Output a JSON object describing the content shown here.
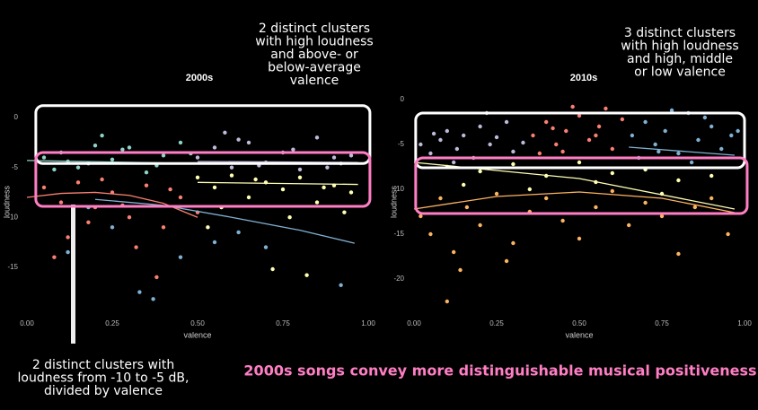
{
  "headline": "2000s songs convey more distinguishable musical positiveness",
  "chart_data": [
    {
      "type": "scatter",
      "title": "2000s",
      "x_label": "valence",
      "y_label": "loudness",
      "xlim": [
        0,
        1
      ],
      "ylim": [
        -19.7,
        2.8
      ],
      "xticks": [
        {
          "value": 0,
          "label": "0.00"
        },
        {
          "value": 0.25,
          "label": "0.25"
        },
        {
          "value": 0.5,
          "label": "0.50"
        },
        {
          "value": 0.75,
          "label": "0.75"
        },
        {
          "value": 1,
          "label": "1.00"
        }
      ],
      "yticks": [
        0,
        -5,
        -10,
        -15
      ],
      "series": [
        {
          "color": "#8dd3c7",
          "x": [
            0.05,
            0.1,
            0.15,
            0.2,
            0.25,
            0.3,
            0.35,
            0.4,
            0.45,
            0.08,
            0.18,
            0.28,
            0.38,
            0.48,
            0.22,
            0.12
          ],
          "values": [
            -4,
            -3.5,
            -5,
            -2.8,
            -4.2,
            -3,
            -5.5,
            -3.8,
            -2.5,
            -5.2,
            -4.6,
            -3.2,
            -4.8,
            -3.6,
            -1.8,
            -4.4
          ]
        },
        {
          "color": "#fb8072",
          "x": [
            0.05,
            0.1,
            0.15,
            0.2,
            0.25,
            0.3,
            0.35,
            0.4,
            0.45,
            0.5,
            0.12,
            0.22,
            0.32,
            0.42,
            0.18,
            0.28,
            0.08,
            0.38
          ],
          "values": [
            -7,
            -8.5,
            -6.5,
            -9,
            -7.5,
            -10,
            -6.8,
            -11,
            -8,
            -9.5,
            -12,
            -6.2,
            -13,
            -7.2,
            -10.5,
            -8.8,
            -14,
            -16
          ]
        },
        {
          "color": "#bebada",
          "x": [
            0.5,
            0.55,
            0.6,
            0.65,
            0.7,
            0.75,
            0.8,
            0.85,
            0.9,
            0.95,
            0.58,
            0.68,
            0.78,
            0.88,
            0.62,
            0.92
          ],
          "values": [
            -4,
            -3,
            -5,
            -2.5,
            -4.5,
            -3.5,
            -5.2,
            -2,
            -4,
            -3.8,
            -1.5,
            -4.8,
            -3.2,
            -5,
            -2.2,
            -4.6
          ]
        },
        {
          "color": "#ffffb3",
          "x": [
            0.5,
            0.55,
            0.6,
            0.65,
            0.7,
            0.75,
            0.8,
            0.85,
            0.9,
            0.95,
            0.57,
            0.67,
            0.77,
            0.87,
            0.53,
            0.72,
            0.82,
            0.93
          ],
          "values": [
            -6,
            -7,
            -5.8,
            -8,
            -6.5,
            -7.2,
            -6,
            -8.5,
            -6.8,
            -7.5,
            -9,
            -6.2,
            -10,
            -7,
            -11,
            -15.2,
            -15.8,
            -9.5
          ]
        },
        {
          "color": "#80b1d3",
          "x": [
            0.12,
            0.18,
            0.25,
            0.33,
            0.37,
            0.45,
            0.55,
            0.62,
            0.7,
            0.92
          ],
          "values": [
            -13.5,
            -9,
            -11,
            -17.5,
            -18.2,
            -14,
            -12.5,
            -11.5,
            -13,
            -16.8
          ]
        }
      ],
      "trend_lines": [
        {
          "color": "#8dd3c7",
          "x": [
            0,
            0.5
          ],
          "values": [
            -4.3,
            -4.6
          ]
        },
        {
          "color": "#fb8072",
          "x": [
            0,
            0.1,
            0.2,
            0.3,
            0.4,
            0.5
          ],
          "values": [
            -8,
            -7.6,
            -7.5,
            -7.8,
            -8.6,
            -10
          ]
        },
        {
          "color": "#80b1d3",
          "x": [
            0.2,
            0.4,
            0.6,
            0.8,
            0.96
          ],
          "values": [
            -8.2,
            -8.8,
            -10,
            -11.3,
            -12.6
          ]
        },
        {
          "color": "#ffffb3",
          "x": [
            0.5,
            0.97
          ],
          "values": [
            -6.5,
            -6.7
          ]
        },
        {
          "color": "#bebada",
          "x": [
            0.5,
            0.97
          ],
          "values": [
            -4.4,
            -4.5
          ]
        }
      ],
      "highlight_boxes": [
        {
          "color": "#ffffff",
          "xlim": [
            0.026,
            1.005
          ],
          "ylim": [
            -4.6,
            1.2
          ]
        },
        {
          "color": "#ff7ec4",
          "xlim": [
            0.026,
            1.005
          ],
          "ylim": [
            -8.9,
            -3.5
          ]
        }
      ],
      "annotation_top": [
        "2 distinct clusters",
        "with high loudness",
        "and above- or",
        "below-average",
        "valence"
      ],
      "annotation_bottom": [
        "2 distinct clusters with",
        "loudness from -10 to -5 dB,",
        "divided by valence"
      ]
    },
    {
      "type": "scatter",
      "title": "2010s",
      "x_label": "valence",
      "y_label": "loudness",
      "xlim": [
        0,
        1
      ],
      "ylim": [
        -23.9,
        1.1
      ],
      "xticks": [
        {
          "value": 0,
          "label": "0.00"
        },
        {
          "value": 0.25,
          "label": "0.25"
        },
        {
          "value": 0.5,
          "label": "0.50"
        },
        {
          "value": 0.75,
          "label": "0.75"
        },
        {
          "value": 1,
          "label": "1.00"
        }
      ],
      "yticks": [
        0,
        -5,
        -10,
        -15,
        -20
      ],
      "series": [
        {
          "color": "#bebada",
          "x": [
            0.02,
            0.05,
            0.08,
            0.1,
            0.13,
            0.15,
            0.18,
            0.2,
            0.23,
            0.25,
            0.28,
            0.3,
            0.33,
            0.12,
            0.22,
            0.06
          ],
          "values": [
            -5,
            -6,
            -4.5,
            -3.5,
            -5.5,
            -4,
            -6.5,
            -3,
            -5,
            -4.2,
            -2.5,
            -5.8,
            -4.8,
            -7,
            -1.5,
            -3.8
          ]
        },
        {
          "color": "#fb8072",
          "x": [
            0.36,
            0.4,
            0.43,
            0.46,
            0.5,
            0.53,
            0.56,
            0.6,
            0.63,
            0.38,
            0.48,
            0.58,
            0.45,
            0.55,
            0.42
          ],
          "values": [
            -4,
            -2.5,
            -5,
            -3.5,
            -1.8,
            -4.5,
            -3,
            -5.5,
            -2.2,
            -6,
            -0.8,
            -1,
            -5.8,
            -4,
            -3.2
          ]
        },
        {
          "color": "#80b1d3",
          "x": [
            0.66,
            0.7,
            0.73,
            0.76,
            0.8,
            0.83,
            0.86,
            0.9,
            0.93,
            0.96,
            0.68,
            0.78,
            0.88,
            0.74,
            0.84,
            0.98
          ],
          "values": [
            -4,
            -2.5,
            -5,
            -3.5,
            -6,
            -1.5,
            -4.5,
            -3,
            -5.5,
            -4,
            -6.5,
            -1.2,
            -2,
            -5.8,
            -7,
            -3.5
          ]
        },
        {
          "color": "#ffffb3",
          "x": [
            0.1,
            0.2,
            0.3,
            0.4,
            0.5,
            0.6,
            0.7,
            0.8,
            0.9,
            0.15,
            0.35,
            0.55,
            0.75
          ],
          "values": [
            -7.5,
            -8,
            -7.2,
            -8.5,
            -7,
            -8.2,
            -7.8,
            -9,
            -8.5,
            -9.5,
            -10,
            -9.2,
            -10.5
          ]
        },
        {
          "color": "#fdb462",
          "x": [
            0.02,
            0.05,
            0.08,
            0.12,
            0.16,
            0.2,
            0.25,
            0.3,
            0.35,
            0.4,
            0.45,
            0.5,
            0.55,
            0.6,
            0.65,
            0.7,
            0.75,
            0.8,
            0.85,
            0.9,
            0.95,
            0.1,
            0.14,
            0.28
          ],
          "values": [
            -13,
            -15,
            -11,
            -17,
            -12,
            -14,
            -10.5,
            -16,
            -12.5,
            -11,
            -13.5,
            -15.5,
            -12,
            -10.2,
            -14,
            -11.5,
            -13,
            -17.2,
            -12,
            -11,
            -15,
            -22.5,
            -19,
            -18
          ]
        }
      ],
      "trend_lines": [
        {
          "color": "#fdb462",
          "x": [
            0,
            0.25,
            0.5,
            0.75,
            0.97
          ],
          "values": [
            -12.2,
            -10.8,
            -10.3,
            -11,
            -12.6
          ]
        },
        {
          "color": "#ffffb3",
          "x": [
            0,
            0.5,
            0.97
          ],
          "values": [
            -7,
            -8.8,
            -12.2
          ]
        },
        {
          "color": "#80b1d3",
          "x": [
            0.65,
            0.97
          ],
          "values": [
            -5.3,
            -6.2
          ]
        }
      ],
      "highlight_boxes": [
        {
          "color": "#ffffff",
          "xlim": [
            0.005,
            1.0
          ],
          "ylim": [
            -7.6,
            -1.5
          ]
        },
        {
          "color": "#ff7ec4",
          "xlim": [
            0.005,
            1.008
          ],
          "ylim": [
            -12.7,
            -6.5
          ]
        }
      ],
      "annotation_top": [
        "3 distinct clusters",
        "with high loudness",
        "and high, middle",
        "or low valence"
      ]
    }
  ]
}
